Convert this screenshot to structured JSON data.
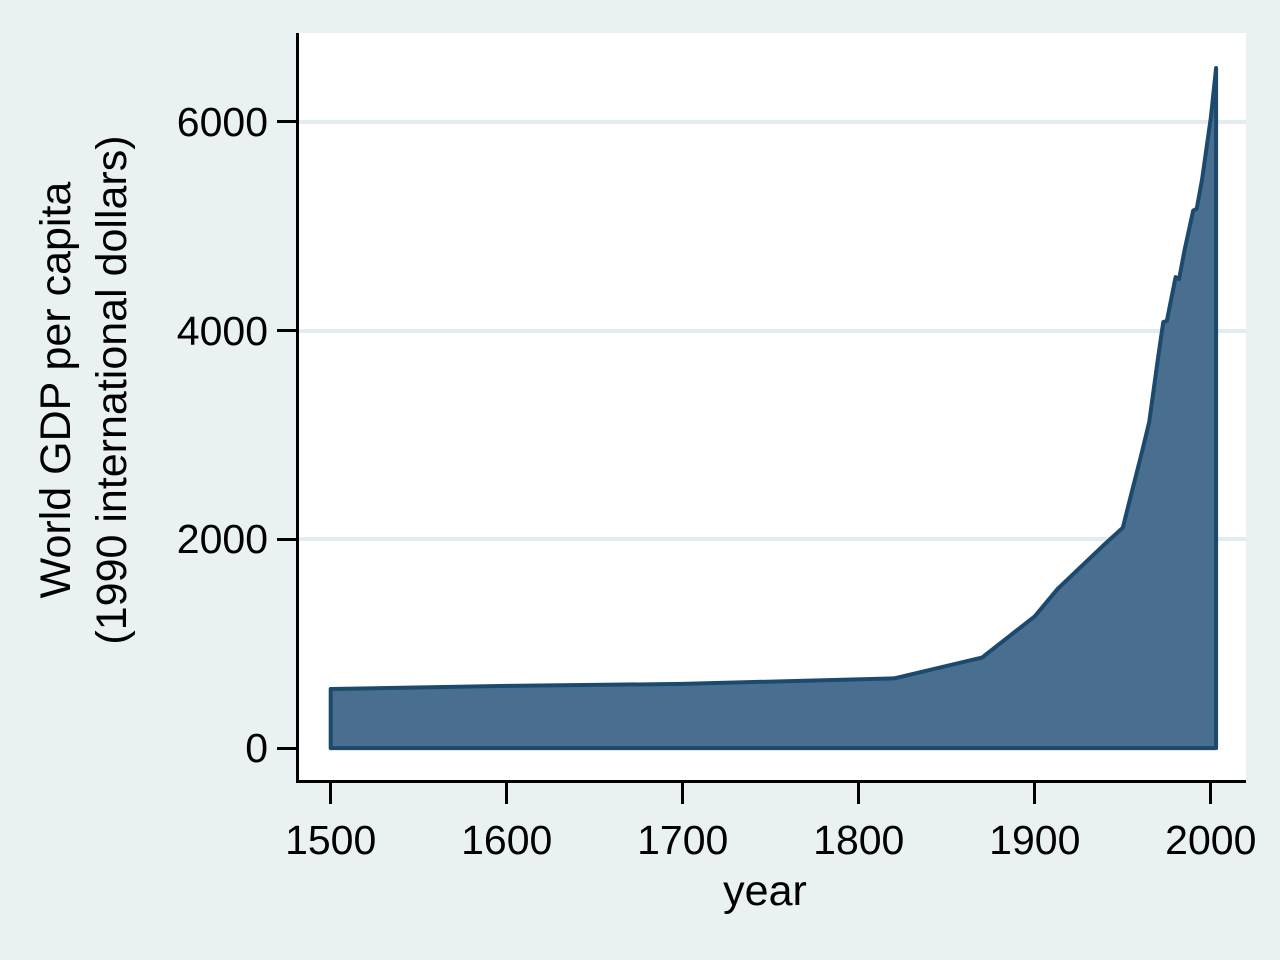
{
  "y_axis": {
    "title_line1": "World GDP per capita",
    "title_line2": "(1990 international dollars)",
    "tick_labels": [
      "0",
      "2000",
      "4000",
      "6000"
    ]
  },
  "x_axis": {
    "title": "year",
    "tick_labels": [
      "1500",
      "1600",
      "1700",
      "1800",
      "1900",
      "2000"
    ]
  },
  "colors": {
    "figure_background": "#EAF1F3",
    "plot_background": "#FFFFFF",
    "gridline": "#E2ECEF",
    "area_fill": "#4A6E90",
    "area_outline": "#1B4A6E",
    "axis_line": "#000000",
    "text": "#000000"
  },
  "chart_data": {
    "type": "area",
    "title": "",
    "xlabel": "year",
    "ylabel": "World GDP per capita (1990 international dollars)",
    "series_name": "World GDP per capita",
    "x": [
      1500,
      1600,
      1700,
      1820,
      1870,
      1900,
      1913,
      1940,
      1950,
      1955,
      1960,
      1965,
      1970,
      1973,
      1975,
      1980,
      1982,
      1985,
      1990,
      1992,
      1995,
      2000,
      2003
    ],
    "y": [
      566,
      596,
      615,
      667,
      867,
      1262,
      1526,
      1958,
      2111,
      2447,
      2777,
      3123,
      3736,
      4083,
      4091,
      4512,
      4494,
      4764,
      5150,
      5167,
      5444,
      6038,
      6516
    ],
    "baseline": 0,
    "x_ticks": [
      1500,
      1600,
      1700,
      1800,
      1900,
      2000
    ],
    "y_ticks": [
      0,
      2000,
      4000,
      6000
    ],
    "gridline_values": [
      2000,
      4000,
      6000
    ],
    "xlim": [
      1482,
      2020
    ],
    "ylim": [
      -306,
      6851
    ],
    "grid": "horizontal",
    "legend": "none"
  }
}
